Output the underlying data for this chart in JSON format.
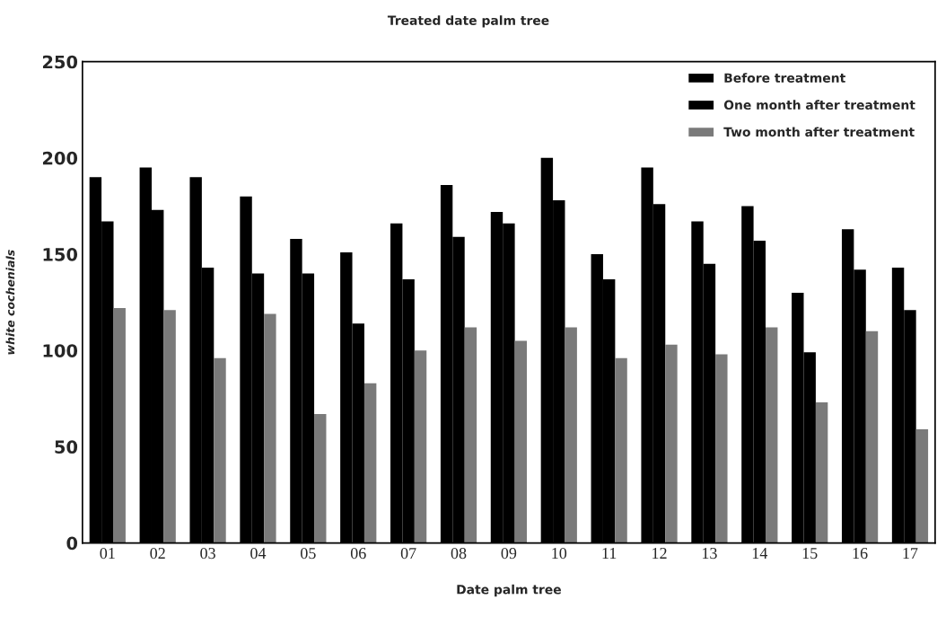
{
  "chart_data": {
    "type": "bar",
    "title": "Treated date palm tree",
    "xlabel": "Date palm tree",
    "ylabel": "white cochenials",
    "categories": [
      "01",
      "02",
      "03",
      "04",
      "05",
      "06",
      "07",
      "08",
      "09",
      "10",
      "11",
      "12",
      "13",
      "14",
      "15",
      "16",
      "17"
    ],
    "series": [
      {
        "name": "Before treatment",
        "color": "#000000",
        "values": [
          190,
          195,
          190,
          180,
          158,
          151,
          166,
          186,
          172,
          200,
          150,
          195,
          167,
          175,
          130,
          163,
          143
        ]
      },
      {
        "name": "One month after treatment",
        "color": "#000000",
        "values": [
          167,
          173,
          143,
          140,
          140,
          114,
          137,
          159,
          166,
          178,
          137,
          176,
          145,
          157,
          99,
          142,
          121
        ]
      },
      {
        "name": "Two month after treatment",
        "color": "#7a7a7a",
        "values": [
          122,
          121,
          96,
          119,
          67,
          83,
          100,
          112,
          105,
          112,
          96,
          103,
          98,
          112,
          73,
          110,
          59
        ]
      }
    ],
    "ylim": [
      0,
      250
    ],
    "yticks": [
      0,
      50,
      100,
      150,
      200,
      250
    ],
    "grid": false,
    "legend": "top right"
  }
}
